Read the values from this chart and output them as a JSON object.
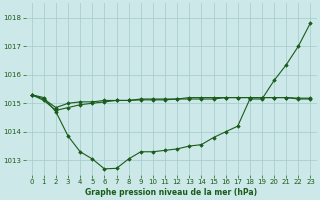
{
  "title": "Graphe pression niveau de la mer (hPa)",
  "bg_color": "#cce8e8",
  "grid_color": "#aacece",
  "line_color": "#1a5c1a",
  "xlim": [
    -0.5,
    23.5
  ],
  "ylim": [
    1012.5,
    1018.5
  ],
  "yticks": [
    1013,
    1014,
    1015,
    1016,
    1017,
    1018
  ],
  "xtick_labels": [
    "0",
    "1",
    "2",
    "3",
    "4",
    "5",
    "6",
    "7",
    "8",
    "9",
    "10",
    "11",
    "12",
    "13",
    "14",
    "15",
    "16",
    "17",
    "18",
    "19",
    "20",
    "21",
    "22",
    "23"
  ],
  "series1_x": [
    0,
    1,
    2,
    3,
    4,
    5,
    6,
    7,
    8,
    9,
    10,
    11,
    12,
    13,
    14,
    15,
    16,
    17,
    18,
    19,
    20,
    21,
    22,
    23
  ],
  "series1_y": [
    1015.3,
    1015.2,
    1014.7,
    1013.85,
    1013.3,
    1013.05,
    1012.7,
    1012.72,
    1013.05,
    1013.3,
    1013.3,
    1013.35,
    1013.4,
    1013.5,
    1013.55,
    1013.8,
    1014.0,
    1014.2,
    1015.15,
    1015.15,
    1015.8,
    1016.35,
    1017.0,
    1017.82
  ],
  "series2_x": [
    0,
    1,
    2,
    3,
    4,
    5,
    6,
    7,
    8,
    9,
    10,
    11,
    12,
    13,
    14,
    15,
    16,
    17,
    18,
    19,
    20,
    21,
    22,
    23
  ],
  "series2_y": [
    1015.3,
    1015.15,
    1014.85,
    1015.0,
    1015.05,
    1015.05,
    1015.1,
    1015.1,
    1015.1,
    1015.15,
    1015.15,
    1015.15,
    1015.15,
    1015.2,
    1015.2,
    1015.2,
    1015.2,
    1015.2,
    1015.2,
    1015.2,
    1015.2,
    1015.2,
    1015.15,
    1015.15
  ],
  "series3_x": [
    0,
    1,
    2,
    3,
    4,
    5,
    6,
    7,
    8,
    9,
    10,
    11,
    12,
    13,
    14,
    15,
    16,
    17,
    18,
    19,
    20,
    21,
    22,
    23
  ],
  "series3_y": [
    1015.3,
    1015.1,
    1014.75,
    1014.85,
    1014.95,
    1015.0,
    1015.05,
    1015.1,
    1015.1,
    1015.12,
    1015.12,
    1015.12,
    1015.15,
    1015.15,
    1015.15,
    1015.15,
    1015.2,
    1015.2,
    1015.2,
    1015.2,
    1015.2,
    1015.2,
    1015.18,
    1015.18
  ],
  "ylabel_fontsize": 5.5,
  "tick_fontsize": 5.0,
  "tick_color": "#1a5c1a",
  "figsize": [
    3.2,
    2.0
  ],
  "dpi": 100
}
